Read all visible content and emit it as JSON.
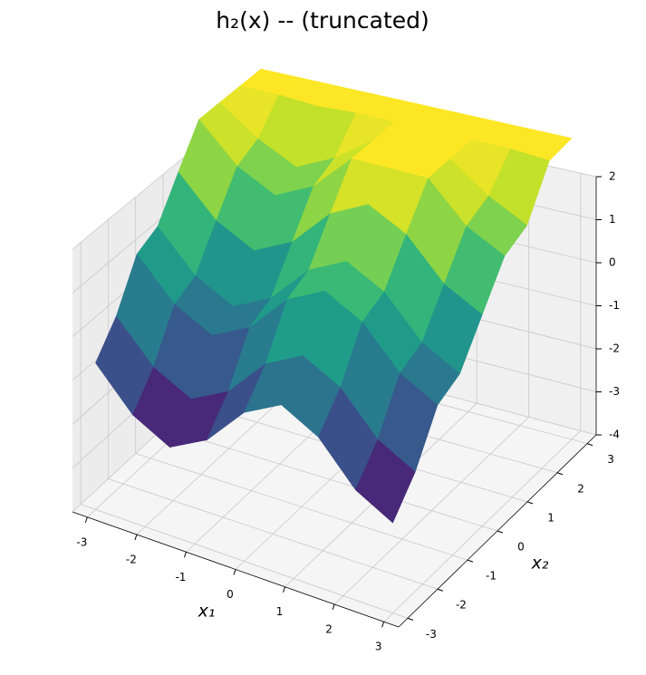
{
  "chart_data": {
    "type": "surface3d",
    "title": "h₂(x) -- (truncated)",
    "xlabel": "x₁",
    "ylabel": "x₂",
    "colormap": "viridis",
    "x1": [
      -3,
      -2.25,
      -1.5,
      -0.75,
      0,
      0.75,
      1.5,
      2.25,
      3
    ],
    "x2": [
      -3,
      -2.25,
      -1.5,
      -0.75,
      0,
      0.75,
      1.5,
      2.25,
      3
    ],
    "z": [
      [
        -0.65,
        -1.55,
        -2.0,
        -1.55,
        -0.65,
        -0.2,
        -0.65,
        -1.55,
        -2.0
      ],
      [
        0.01,
        -0.89,
        -1.34,
        -0.89,
        0.01,
        0.46,
        0.01,
        -0.89,
        -1.34
      ],
      [
        1.04,
        0.14,
        -0.31,
        0.14,
        1.04,
        1.49,
        1.04,
        0.14,
        -0.31
      ],
      [
        1.28,
        0.38,
        -0.07,
        0.38,
        1.28,
        1.73,
        1.28,
        0.38,
        -0.07
      ],
      [
        2.15,
        1.25,
        0.8,
        1.25,
        2.15,
        2.6,
        2.15,
        1.25,
        0.8
      ],
      [
        3,
        2.12,
        1.67,
        2.12,
        3,
        3,
        3,
        2.12,
        1.67
      ],
      [
        3,
        2.36,
        1.91,
        2.36,
        3,
        3,
        3,
        2.36,
        1.91
      ],
      [
        3,
        3,
        2.94,
        3,
        3,
        3,
        3,
        3,
        2.94
      ],
      [
        3,
        3,
        3,
        3,
        3,
        3,
        3,
        3,
        3
      ]
    ],
    "xlim": [
      -3.3,
      3.3
    ],
    "ylim": [
      -3.3,
      3.3
    ],
    "zlim": [
      -4,
      2
    ],
    "xticks": [
      -3,
      -2,
      -1,
      0,
      1,
      2,
      3
    ],
    "yticks": [
      -3,
      -2,
      -1,
      0,
      1,
      2,
      3
    ],
    "zticks": [
      -4,
      -3,
      -2,
      -1,
      0,
      1,
      2
    ],
    "grid": true
  }
}
